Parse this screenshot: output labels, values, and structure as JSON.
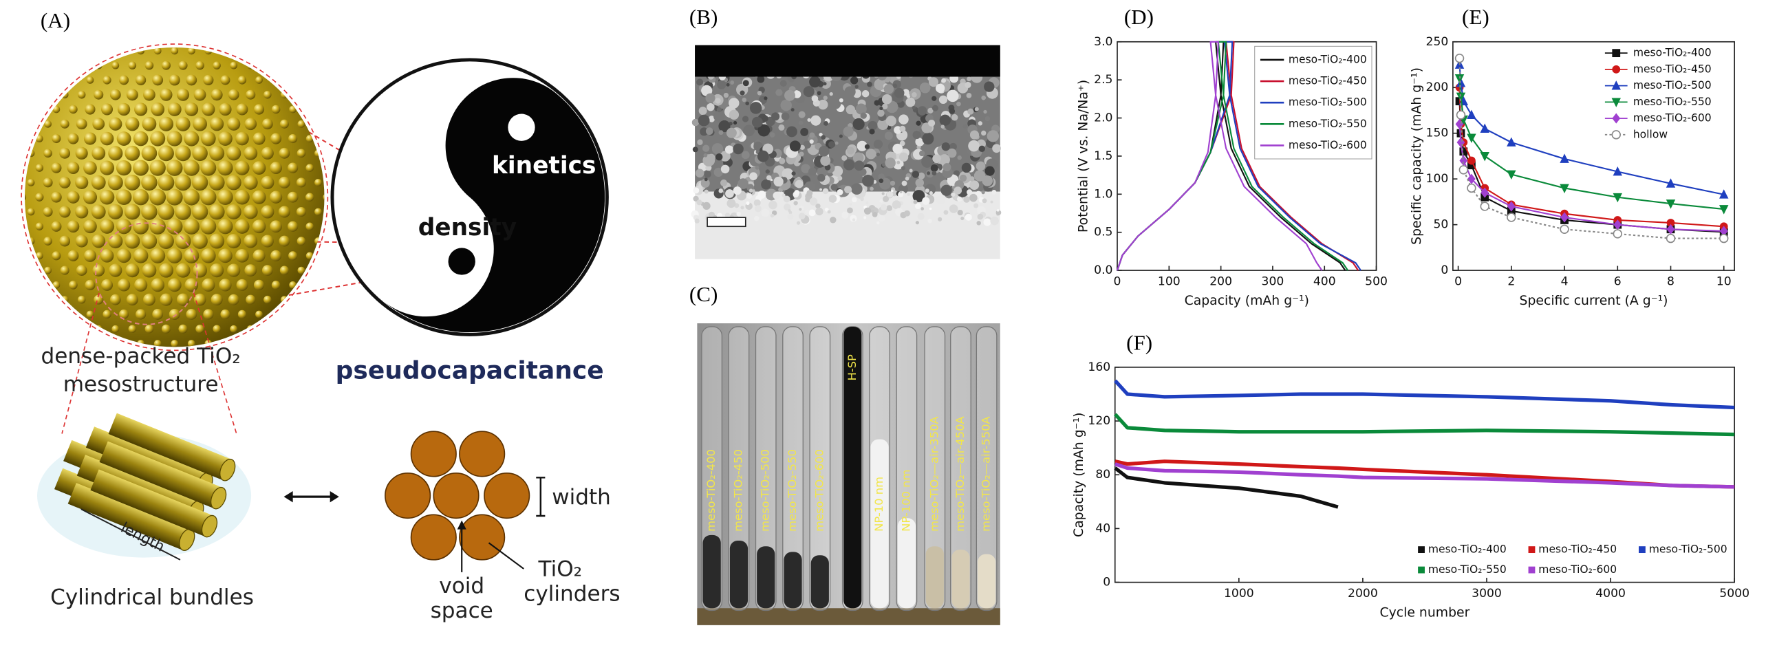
{
  "panel_labels": [
    "(A)",
    "(B)",
    "(C)",
    "(D)",
    "(E)",
    "(F)"
  ],
  "panel_a": {
    "sphere_caption_1": "dense-packed TiO₂",
    "sphere_caption_2": "mesostructure",
    "kinetics": "kinetics",
    "density": "density",
    "pseudocapacitance": "pseudocapacitance",
    "length": "length",
    "bundles": "Cylindrical bundles",
    "width": "width",
    "void_1": "void",
    "void_2": "space",
    "cyl_1": "TiO₂",
    "cyl_2": "cylinders"
  },
  "panel_c": {
    "tubes": [
      "meso-TiO₂-400",
      "meso-TiO₂-450",
      "meso-TiO₂-500",
      "meso-TiO₂-550",
      "meso-TiO₂-600",
      "H-SP",
      "NP-10 nm",
      "NP-100 nm",
      "meso-TiO₂—air-350A",
      "meso-TiO₂—air-450A",
      "meso-TiO₂—air-550A"
    ]
  },
  "chart_data": [
    {
      "type": "line",
      "xlabel": "Capacity (mAh g⁻¹)",
      "ylabel": "Potential (V vs. Na/Na⁺)",
      "xlim": [
        0,
        500
      ],
      "ylim": [
        0,
        3
      ],
      "xticks": [
        0,
        100,
        200,
        300,
        400,
        500
      ],
      "yticks": [
        {
          "value": 0,
          "label": "0.0"
        },
        0.5,
        {
          "value": 1,
          "label": "1.0"
        },
        1.5,
        {
          "value": 2,
          "label": "2.0"
        },
        2.5,
        {
          "value": 3,
          "label": "3.0"
        }
      ],
      "legend": "upper right",
      "series": [
        {
          "name": "meso-TiO₂-400",
          "color": "#111111",
          "x": [
            0,
            10,
            40,
            100,
            150,
            180,
            200,
            205,
            190,
            200,
            220,
            255,
            315,
            375,
            430,
            440
          ],
          "values": [
            0,
            0.2,
            0.45,
            0.8,
            1.15,
            1.55,
            2.3,
            3.0,
            3.0,
            2.3,
            1.6,
            1.1,
            0.7,
            0.35,
            0.1,
            0
          ]
        },
        {
          "name": "meso-TiO₂-450",
          "color": "#c8102e",
          "x": [
            0,
            10,
            40,
            100,
            150,
            180,
            220,
            225,
            210,
            220,
            240,
            275,
            335,
            395,
            455,
            465
          ],
          "values": [
            0,
            0.2,
            0.45,
            0.8,
            1.15,
            1.55,
            2.3,
            3.0,
            3.0,
            2.3,
            1.6,
            1.1,
            0.7,
            0.35,
            0.1,
            0
          ]
        },
        {
          "name": "meso-TiO₂-500",
          "color": "#1f3fbf",
          "x": [
            0,
            10,
            40,
            100,
            150,
            180,
            217,
            222,
            207,
            217,
            237,
            272,
            332,
            392,
            460,
            470
          ],
          "values": [
            0,
            0.2,
            0.45,
            0.8,
            1.15,
            1.55,
            2.3,
            3.0,
            3.0,
            2.3,
            1.6,
            1.1,
            0.7,
            0.35,
            0.1,
            0
          ]
        },
        {
          "name": "meso-TiO₂-550",
          "color": "#0a8a3a",
          "x": [
            0,
            10,
            40,
            100,
            150,
            180,
            205,
            210,
            195,
            205,
            225,
            260,
            320,
            380,
            435,
            445
          ],
          "values": [
            0,
            0.2,
            0.45,
            0.8,
            1.15,
            1.55,
            2.3,
            3.0,
            3.0,
            2.3,
            1.6,
            1.1,
            0.7,
            0.35,
            0.1,
            0
          ]
        },
        {
          "name": "meso-TiO₂-600",
          "color": "#a040d0",
          "x": [
            0,
            10,
            40,
            100,
            150,
            175,
            190,
            195,
            180,
            190,
            210,
            245,
            305,
            365,
            385,
            395
          ],
          "values": [
            0,
            0.2,
            0.45,
            0.8,
            1.15,
            1.55,
            2.3,
            3.0,
            3.0,
            2.3,
            1.6,
            1.1,
            0.7,
            0.35,
            0.1,
            0
          ]
        }
      ]
    },
    {
      "type": "line",
      "xlabel": "Specific current (A g⁻¹)",
      "ylabel": "Specific capacity (mAh g⁻¹)",
      "xlim": [
        -0.2,
        10.4
      ],
      "ylim": [
        0,
        250
      ],
      "xticks": [
        0,
        2,
        4,
        6,
        8,
        10
      ],
      "yticks": [
        0,
        50,
        100,
        150,
        200,
        250
      ],
      "legend": "upper right",
      "x": [
        0.05,
        0.1,
        0.2,
        0.5,
        1,
        2,
        4,
        6,
        8,
        10
      ],
      "series": [
        {
          "name": "meso-TiO₂-400",
          "color": "#111111",
          "marker": "square",
          "values": [
            185,
            150,
            130,
            115,
            80,
            65,
            55,
            50,
            45,
            42
          ]
        },
        {
          "name": "meso-TiO₂-450",
          "color": "#d01818",
          "marker": "circle",
          "values": [
            200,
            160,
            140,
            120,
            90,
            72,
            62,
            55,
            52,
            48
          ]
        },
        {
          "name": "meso-TiO₂-500",
          "color": "#1f3fbf",
          "marker": "triangle-up",
          "values": [
            225,
            205,
            185,
            170,
            155,
            140,
            122,
            108,
            95,
            83
          ]
        },
        {
          "name": "meso-TiO₂-550",
          "color": "#0a8a3a",
          "marker": "triangle-down",
          "values": [
            210,
            190,
            165,
            145,
            125,
            105,
            90,
            80,
            73,
            67
          ]
        },
        {
          "name": "meso-TiO₂-600",
          "color": "#a040d0",
          "marker": "diamond",
          "values": [
            160,
            140,
            120,
            100,
            85,
            70,
            58,
            50,
            45,
            43
          ]
        },
        {
          "name": "hollow",
          "color": "#888888",
          "marker": "circle-open",
          "dash": true,
          "values": [
            232,
            170,
            110,
            90,
            70,
            58,
            45,
            40,
            35,
            35
          ]
        }
      ]
    },
    {
      "type": "line",
      "xlabel": "Cycle number",
      "ylabel": "Capacity (mAh g⁻¹)",
      "xlim": [
        0,
        5000
      ],
      "ylim": [
        0,
        160
      ],
      "xticks": [
        1000,
        2000,
        3000,
        4000,
        5000
      ],
      "yticks": [
        0,
        40,
        80,
        120,
        160
      ],
      "legend": "lower center",
      "x": [
        1,
        100,
        400,
        1000,
        1500,
        1800,
        2000,
        3000,
        4000,
        4500,
        5000
      ],
      "series": [
        {
          "name": "meso-TiO₂-400",
          "color": "#111111",
          "values": [
            85,
            78,
            74,
            70,
            64,
            56,
            null,
            null,
            null,
            null,
            null
          ]
        },
        {
          "name": "meso-TiO₂-450",
          "color": "#d01818",
          "values": [
            90,
            88,
            90,
            88,
            86,
            85,
            84,
            80,
            75,
            72,
            71
          ]
        },
        {
          "name": "meso-TiO₂-500",
          "color": "#1f3fbf",
          "values": [
            150,
            140,
            138,
            139,
            140,
            140,
            140,
            138,
            135,
            132,
            130
          ]
        },
        {
          "name": "meso-TiO₂-550",
          "color": "#0a8a3a",
          "values": [
            125,
            115,
            113,
            112,
            112,
            112,
            112,
            113,
            112,
            111,
            110
          ]
        },
        {
          "name": "meso-TiO₂-600",
          "color": "#a040d0",
          "values": [
            88,
            85,
            83,
            82,
            80,
            79,
            78,
            77,
            74,
            72,
            71
          ]
        }
      ]
    }
  ]
}
